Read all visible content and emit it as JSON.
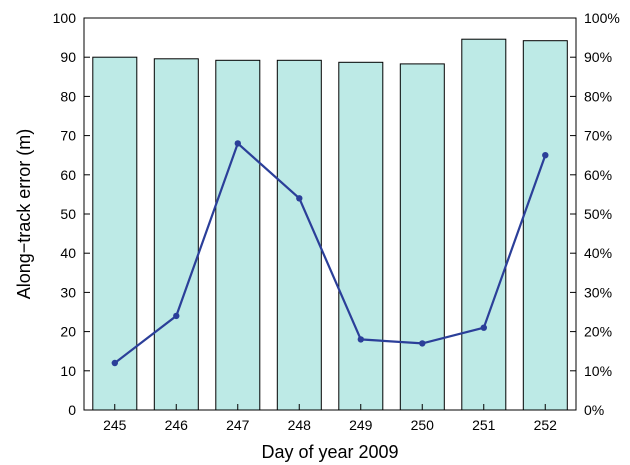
{
  "chart_data": {
    "type": "bar+line",
    "xlabel": "Day of year 2009",
    "ylabel": "Along−track error (m)",
    "categories": [
      "245",
      "246",
      "247",
      "248",
      "249",
      "250",
      "251",
      "252"
    ],
    "bar_series": {
      "axis": "left",
      "values": [
        90,
        89.6,
        89.2,
        89.2,
        88.7,
        88.3,
        94.6,
        94.2
      ],
      "fill": "#bdeae6",
      "stroke": "#000000"
    },
    "line_series": {
      "axis": "right",
      "values": [
        12,
        24,
        68,
        54,
        18,
        17,
        21,
        65
      ],
      "color": "#2b3f99"
    },
    "left_axis": {
      "ylim": [
        0,
        100
      ],
      "ticks": [
        "0",
        "10",
        "20",
        "30",
        "40",
        "50",
        "60",
        "70",
        "80",
        "90",
        "100"
      ]
    },
    "right_axis": {
      "ylim": [
        0,
        100
      ],
      "ticks": [
        "0%",
        "10%",
        "20%",
        "30%",
        "40%",
        "50%",
        "60%",
        "70%",
        "80%",
        "90%",
        "100%"
      ]
    },
    "grid": false
  }
}
